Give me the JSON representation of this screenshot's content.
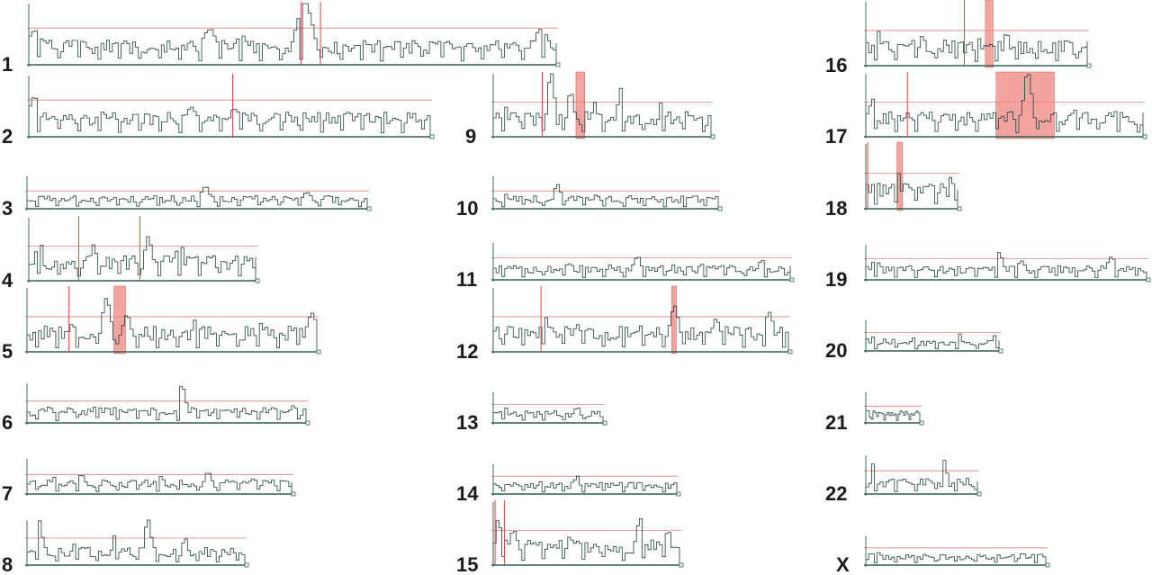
{
  "chart_data": {
    "type": "line",
    "description_free": true,
    "colors": {
      "trace": "#1f3f3a",
      "baseline": "#2f5e57",
      "threshold": "#e8827e",
      "region": "#ef8a86",
      "marker": "#d9463e"
    },
    "x_unit": "fraction of chromosome length",
    "y_unit": "fraction of panel height",
    "chromosomes": [
      {
        "label": "1",
        "threshold": 0.6,
        "peaks": [
          [
            0.01,
            0.55
          ],
          [
            0.09,
            0.4
          ],
          [
            0.17,
            0.35
          ],
          [
            0.34,
            0.55
          ],
          [
            0.4,
            0.45
          ],
          [
            0.52,
            1.0
          ],
          [
            0.62,
            0.3
          ],
          [
            0.78,
            0.35
          ],
          [
            0.9,
            0.3
          ],
          [
            0.97,
            0.55
          ]
        ],
        "markers": [
          0.516,
          0.553
        ],
        "regions": []
      },
      {
        "label": "2",
        "threshold": 0.6,
        "peaks": [
          [
            0.01,
            0.6
          ],
          [
            0.18,
            0.4
          ],
          [
            0.4,
            0.45
          ],
          [
            0.51,
            0.45
          ],
          [
            0.62,
            0.3
          ],
          [
            0.78,
            0.3
          ],
          [
            0.95,
            0.3
          ]
        ],
        "markers": [
          0.508
        ],
        "regions": []
      },
      {
        "label": "3",
        "threshold": 0.55,
        "peaks": [
          [
            0.05,
            0.3
          ],
          [
            0.22,
            0.35
          ],
          [
            0.52,
            0.65
          ],
          [
            0.72,
            0.3
          ],
          [
            0.82,
            0.5
          ],
          [
            0.95,
            0.3
          ]
        ],
        "markers": [],
        "regions": []
      },
      {
        "label": "4",
        "threshold": 0.55,
        "peaks": [
          [
            0.04,
            0.7
          ],
          [
            0.28,
            0.55
          ],
          [
            0.52,
            0.7
          ],
          [
            0.66,
            0.65
          ],
          [
            0.9,
            0.3
          ]
        ],
        "markers": [
          0.22,
          0.49
        ],
        "regions": []
      },
      {
        "label": "5",
        "threshold": 0.55,
        "peaks": [
          [
            0.15,
            0.4
          ],
          [
            0.27,
            0.8
          ],
          [
            0.34,
            0.55
          ],
          [
            0.58,
            0.5
          ],
          [
            0.8,
            0.4
          ],
          [
            0.98,
            0.6
          ]
        ],
        "markers": [
          0.145
        ],
        "regions": [
          [
            0.3,
            0.34
          ]
        ]
      },
      {
        "label": "6",
        "threshold": 0.55,
        "peaks": [
          [
            0.05,
            0.35
          ],
          [
            0.25,
            0.4
          ],
          [
            0.55,
            0.9
          ],
          [
            0.75,
            0.35
          ],
          [
            0.95,
            0.4
          ]
        ],
        "markers": [],
        "regions": []
      },
      {
        "label": "7",
        "threshold": 0.55,
        "peaks": [
          [
            0.1,
            0.45
          ],
          [
            0.2,
            0.55
          ],
          [
            0.5,
            0.5
          ],
          [
            0.68,
            0.6
          ],
          [
            0.85,
            0.4
          ]
        ],
        "markers": [],
        "regions": []
      },
      {
        "label": "8",
        "threshold": 0.6,
        "peaks": [
          [
            0.05,
            0.95
          ],
          [
            0.22,
            0.55
          ],
          [
            0.4,
            0.65
          ],
          [
            0.55,
            1.0
          ],
          [
            0.72,
            0.55
          ],
          [
            0.85,
            0.3
          ]
        ],
        "markers": [],
        "regions": []
      },
      {
        "label": "9",
        "threshold": 0.55,
        "peaks": [
          [
            0.05,
            0.45
          ],
          [
            0.26,
            1.0
          ],
          [
            0.35,
            0.7
          ],
          [
            0.46,
            0.5
          ],
          [
            0.58,
            0.75
          ],
          [
            0.77,
            0.55
          ],
          [
            0.95,
            0.3
          ]
        ],
        "markers": [
          0.225
        ],
        "regions": [
          [
            0.38,
            0.42
          ]
        ]
      },
      {
        "label": "10",
        "threshold": 0.55,
        "peaks": [
          [
            0.05,
            0.4
          ],
          [
            0.28,
            0.75
          ],
          [
            0.45,
            0.4
          ],
          [
            0.6,
            0.4
          ],
          [
            0.85,
            0.35
          ]
        ],
        "markers": [],
        "regions": []
      },
      {
        "label": "11",
        "threshold": 0.6,
        "peaks": [
          [
            0.05,
            0.35
          ],
          [
            0.25,
            0.4
          ],
          [
            0.48,
            0.6
          ],
          [
            0.7,
            0.4
          ],
          [
            0.9,
            0.5
          ]
        ],
        "markers": [],
        "regions": []
      },
      {
        "label": "12",
        "threshold": 0.55,
        "peaks": [
          [
            0.05,
            0.35
          ],
          [
            0.17,
            0.55
          ],
          [
            0.28,
            0.4
          ],
          [
            0.5,
            0.4
          ],
          [
            0.61,
            0.7
          ],
          [
            0.75,
            0.5
          ],
          [
            0.93,
            0.6
          ]
        ],
        "markers": [
          0.162
        ],
        "regions": [
          [
            0.605,
            0.62
          ]
        ]
      },
      {
        "label": "13",
        "threshold": 0.6,
        "peaks": [
          [
            0.1,
            0.5
          ],
          [
            0.45,
            0.65
          ],
          [
            0.75,
            0.65
          ],
          [
            0.95,
            0.35
          ]
        ],
        "markers": [],
        "regions": []
      },
      {
        "label": "14",
        "threshold": 0.6,
        "peaks": [
          [
            0.05,
            0.4
          ],
          [
            0.25,
            0.4
          ],
          [
            0.45,
            0.6
          ],
          [
            0.7,
            0.5
          ],
          [
            0.92,
            0.3
          ]
        ],
        "markers": [],
        "regions": []
      },
      {
        "label": "15",
        "threshold": 0.55,
        "peaks": [
          [
            0.02,
            0.7
          ],
          [
            0.1,
            0.55
          ],
          [
            0.4,
            0.4
          ],
          [
            0.78,
            0.75
          ],
          [
            0.93,
            0.55
          ]
        ],
        "markers": [
          0.01,
          0.06
        ],
        "regions": []
      },
      {
        "label": "16",
        "threshold": 0.55,
        "peaks": [
          [
            0.05,
            0.5
          ],
          [
            0.25,
            0.45
          ],
          [
            0.5,
            0.45
          ],
          [
            0.63,
            0.5
          ],
          [
            0.9,
            0.4
          ]
        ],
        "markers": [
          0.445
        ],
        "regions": [
          [
            0.54,
            0.575
          ]
        ]
      },
      {
        "label": "17",
        "threshold": 0.55,
        "peaks": [
          [
            0.02,
            0.55
          ],
          [
            0.2,
            0.35
          ],
          [
            0.42,
            0.3
          ],
          [
            0.58,
            1.0
          ],
          [
            0.75,
            0.4
          ],
          [
            0.92,
            0.3
          ]
        ],
        "markers": [
          0.15
        ],
        "regions": [
          [
            0.47,
            0.68
          ]
        ]
      },
      {
        "label": "18",
        "threshold": 0.55,
        "peaks": [
          [
            0.05,
            0.4
          ],
          [
            0.35,
            0.55
          ],
          [
            0.65,
            0.35
          ],
          [
            0.92,
            0.7
          ]
        ],
        "markers": [
          0.02
        ],
        "regions": [
          [
            0.34,
            0.4
          ]
        ]
      },
      {
        "label": "19",
        "threshold": 0.6,
        "peaks": [
          [
            0.03,
            0.6
          ],
          [
            0.47,
            0.75
          ],
          [
            0.55,
            0.5
          ],
          [
            0.87,
            0.65
          ],
          [
            0.97,
            0.3
          ]
        ],
        "markers": [],
        "regions": []
      },
      {
        "label": "20",
        "threshold": 0.6,
        "peaks": [
          [
            0.05,
            0.45
          ],
          [
            0.35,
            0.4
          ],
          [
            0.7,
            0.55
          ],
          [
            0.95,
            0.5
          ]
        ],
        "markers": [],
        "regions": []
      },
      {
        "label": "21",
        "threshold": 0.55,
        "peaks": [
          [
            0.1,
            0.4
          ],
          [
            0.45,
            0.35
          ],
          [
            0.8,
            0.45
          ]
        ],
        "markers": [],
        "regions": []
      },
      {
        "label": "22",
        "threshold": 0.6,
        "peaks": [
          [
            0.05,
            0.75
          ],
          [
            0.3,
            0.35
          ],
          [
            0.7,
            0.95
          ],
          [
            0.9,
            0.4
          ]
        ],
        "markers": [],
        "regions": []
      },
      {
        "label": "X",
        "threshold": 0.6,
        "peaks": [
          [
            0.05,
            0.6
          ],
          [
            0.25,
            0.3
          ],
          [
            0.5,
            0.3
          ],
          [
            0.8,
            0.3
          ]
        ],
        "markers": [],
        "regions": []
      }
    ]
  }
}
